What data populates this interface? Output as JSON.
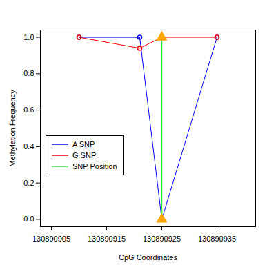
{
  "chart_data": {
    "type": "line",
    "x_label": "CpG Coordinates",
    "y_label": "Methylation Frequency",
    "x": [
      130890910,
      130890921,
      130890925,
      130890935
    ],
    "series": [
      {
        "name": "A SNP",
        "color": "#0000ff",
        "marker": "circle",
        "values": [
          1,
          1,
          0,
          1
        ]
      },
      {
        "name": "G SNP",
        "color": "#ff0000",
        "marker": "circle",
        "values": [
          1,
          0.94,
          1,
          1
        ]
      }
    ],
    "snp_position": {
      "name": "SNP Position",
      "color": "#33ee33",
      "x": 130890925,
      "marker": "triangle",
      "marker_color": "#ffa500"
    },
    "xlim": [
      130890903,
      130890942
    ],
    "xticks": [
      130890905,
      130890915,
      130890925,
      130890935
    ],
    "ylim": [
      -0.04,
      1.04
    ],
    "yticks": [
      {
        "value": 0,
        "label": "0.0"
      },
      {
        "value": 0.2,
        "label": "0.2"
      },
      {
        "value": 0.4,
        "label": "0.4"
      },
      {
        "value": 0.6,
        "label": "0.6"
      },
      {
        "value": 0.8,
        "label": "0.8"
      },
      {
        "value": 1,
        "label": "1.0"
      }
    ],
    "grid": false,
    "legend": "left"
  }
}
